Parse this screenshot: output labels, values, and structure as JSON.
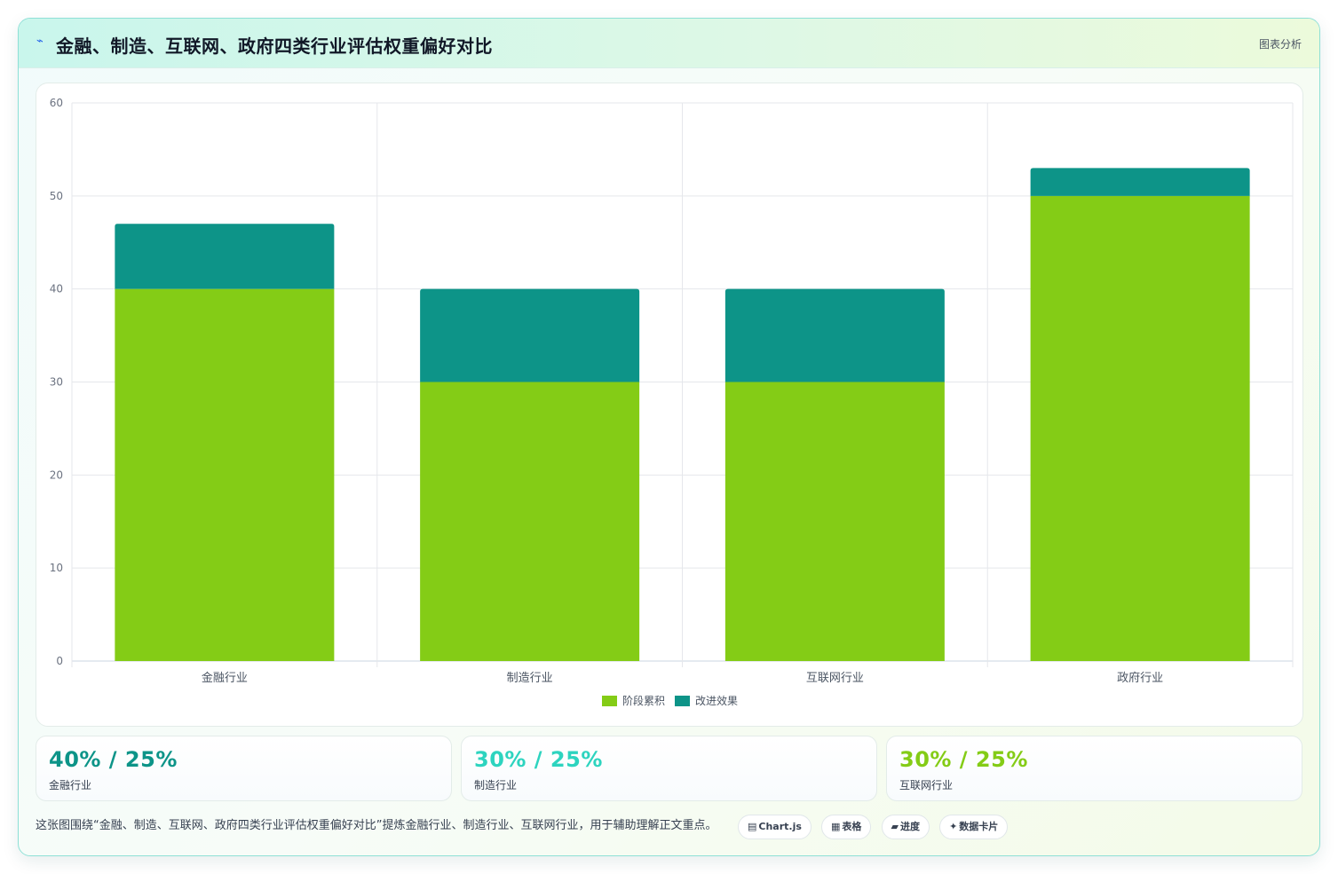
{
  "header": {
    "logo_glyph": "⌁",
    "title": "金融、制造、互联网、政府四类行业评估权重偏好对比",
    "tag": "图表分析"
  },
  "chart_data": {
    "type": "bar",
    "stacked": true,
    "categories": [
      "金融行业",
      "制造行业",
      "互联网行业",
      "政府行业"
    ],
    "series": [
      {
        "name": "阶段累积",
        "values": [
          40,
          30,
          30,
          50
        ],
        "color": "#84cc16"
      },
      {
        "name": "改进效果",
        "values": [
          7,
          10,
          10,
          3
        ],
        "color": "#0d9488"
      }
    ],
    "ylim": [
      0,
      60
    ],
    "yticks": [
      0,
      10,
      20,
      30,
      40,
      50,
      60
    ],
    "grid": true,
    "legend": "bottom",
    "xlabel": "",
    "ylabel": ""
  },
  "stats": [
    {
      "value": "40% / 25%",
      "label": "金融行业",
      "color": "#0d9488"
    },
    {
      "value": "30% / 25%",
      "label": "制造行业",
      "color": "#2dd4bf"
    },
    {
      "value": "30% / 25%",
      "label": "互联网行业",
      "color": "#84cc16"
    }
  ],
  "footer": {
    "note": "这张图围绕“金融、制造、互联网、政府四类行业评估权重偏好对比”提炼金融行业、制造行业、互联网行业，用于辅助理解正文重点。",
    "pills": [
      {
        "icon": "▤",
        "label": "Chart.js"
      },
      {
        "icon": "▦",
        "label": "表格"
      },
      {
        "icon": "▰",
        "label": "进度"
      },
      {
        "icon": "✦",
        "label": "数据卡片"
      }
    ]
  }
}
